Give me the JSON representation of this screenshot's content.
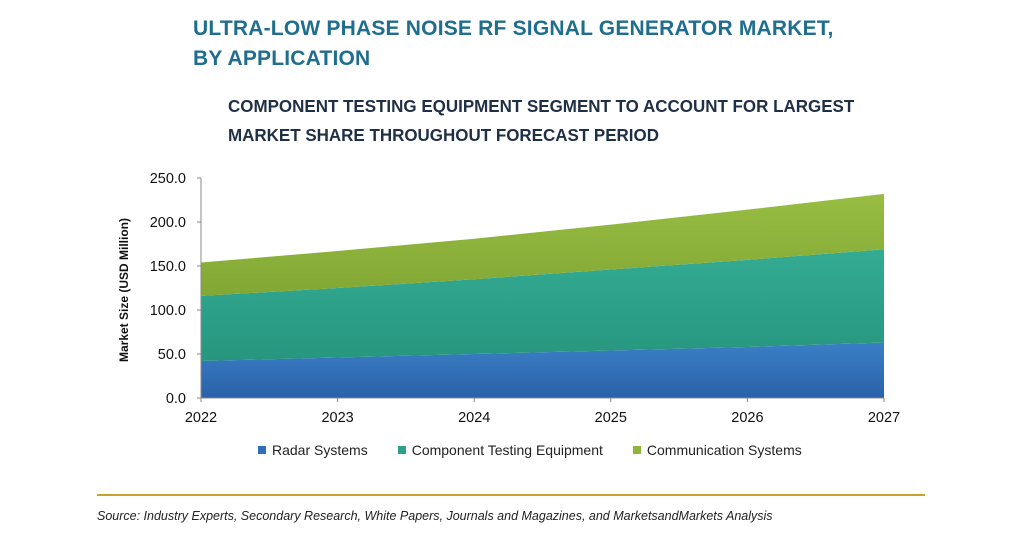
{
  "title_line1": "ULTRA-LOW PHASE NOISE RF SIGNAL GENERATOR MARKET,",
  "title_line2": "BY APPLICATION",
  "subtitle_line1": "COMPONENT TESTING EQUIPMENT SEGMENT TO ACCOUNT FOR LARGEST",
  "subtitle_line2": "MARKET SHARE THROUGHOUT FORECAST PERIOD",
  "source": "Source: Industry Experts, Secondary Research, White Papers, Journals and Magazines, and MarketsandMarkets Analysis",
  "chart_data": {
    "type": "area",
    "stacked": true,
    "title": "ULTRA-LOW PHASE NOISE RF SIGNAL GENERATOR MARKET, BY APPLICATION",
    "ylabel": "Market Size (USD Million)",
    "xlabel": "",
    "categories": [
      "2022",
      "2023",
      "2024",
      "2025",
      "2026",
      "2027"
    ],
    "y_ticks": [
      "0.0",
      "50.0",
      "100.0",
      "150.0",
      "200.0",
      "250.0"
    ],
    "ylim": [
      0,
      250
    ],
    "legend_position": "bottom",
    "grid": false,
    "series": [
      {
        "name": "Radar Systems",
        "color": "#2e6fb7",
        "values": [
          42,
          46,
          50,
          54,
          58,
          63
        ]
      },
      {
        "name": "Component Testing Equipment",
        "color": "#2ea18a",
        "values": [
          74,
          79,
          85,
          92,
          99,
          106
        ]
      },
      {
        "name": "Communication Systems",
        "color": "#8fb53b",
        "values": [
          38,
          42,
          46,
          51,
          57,
          63
        ]
      }
    ]
  }
}
